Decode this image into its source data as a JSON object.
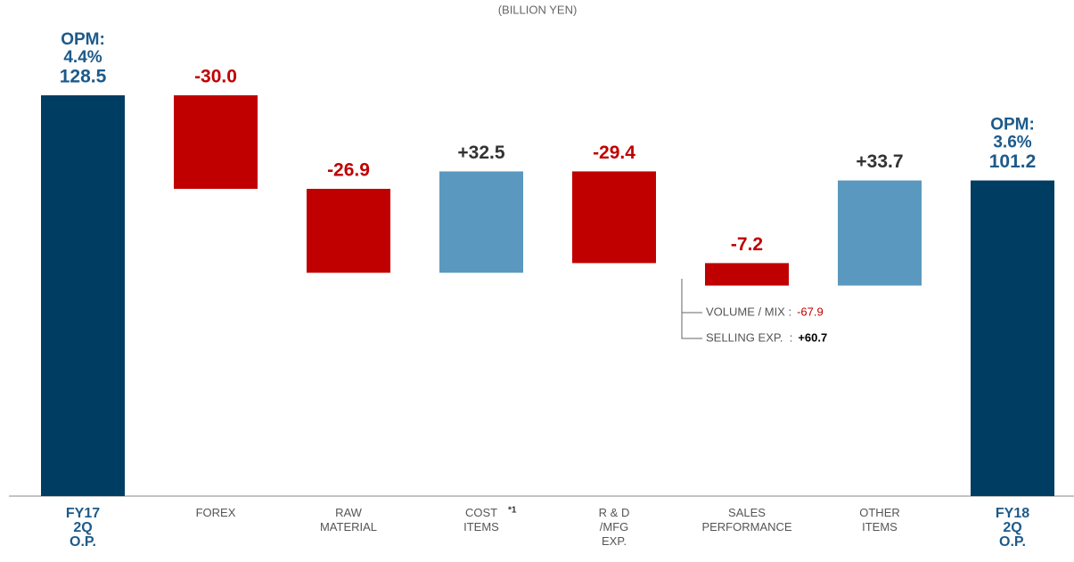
{
  "chart_data": {
    "type": "waterfall",
    "subtitle": "(BILLION YEN)",
    "categories": [
      [
        "FY17",
        "2Q",
        "O.P."
      ],
      [
        "FOREX"
      ],
      [
        "RAW",
        "MATERIAL"
      ],
      [
        "COST",
        "ITEMS"
      ],
      [
        "R & D",
        "/MFG",
        "EXP."
      ],
      [
        "SALES",
        "PERFORMANCE"
      ],
      [
        "OTHER",
        "ITEMS"
      ],
      [
        "FY18",
        "2Q",
        "O.P."
      ]
    ],
    "category_note": "*1",
    "values": [
      128.5,
      -30.0,
      -26.9,
      32.5,
      -29.4,
      -7.2,
      33.7,
      101.2
    ],
    "value_labels": [
      "128.5",
      "-30.0",
      "-26.9",
      "+32.5",
      "-29.4",
      "-7.2",
      "+33.7",
      "101.2"
    ],
    "colors": {
      "total": "#003d63",
      "decrease": "#c00000",
      "increase": "#5b98bf"
    },
    "opm": [
      [
        "OPM:",
        "4.4%"
      ],
      [
        "OPM:",
        "3.6%"
      ]
    ],
    "breakdown": [
      {
        "label": "VOLUME / MIX :",
        "value_label": "-67.9"
      },
      {
        "label": "SELLING EXP.  :",
        "value_label": "+60.7"
      }
    ]
  }
}
